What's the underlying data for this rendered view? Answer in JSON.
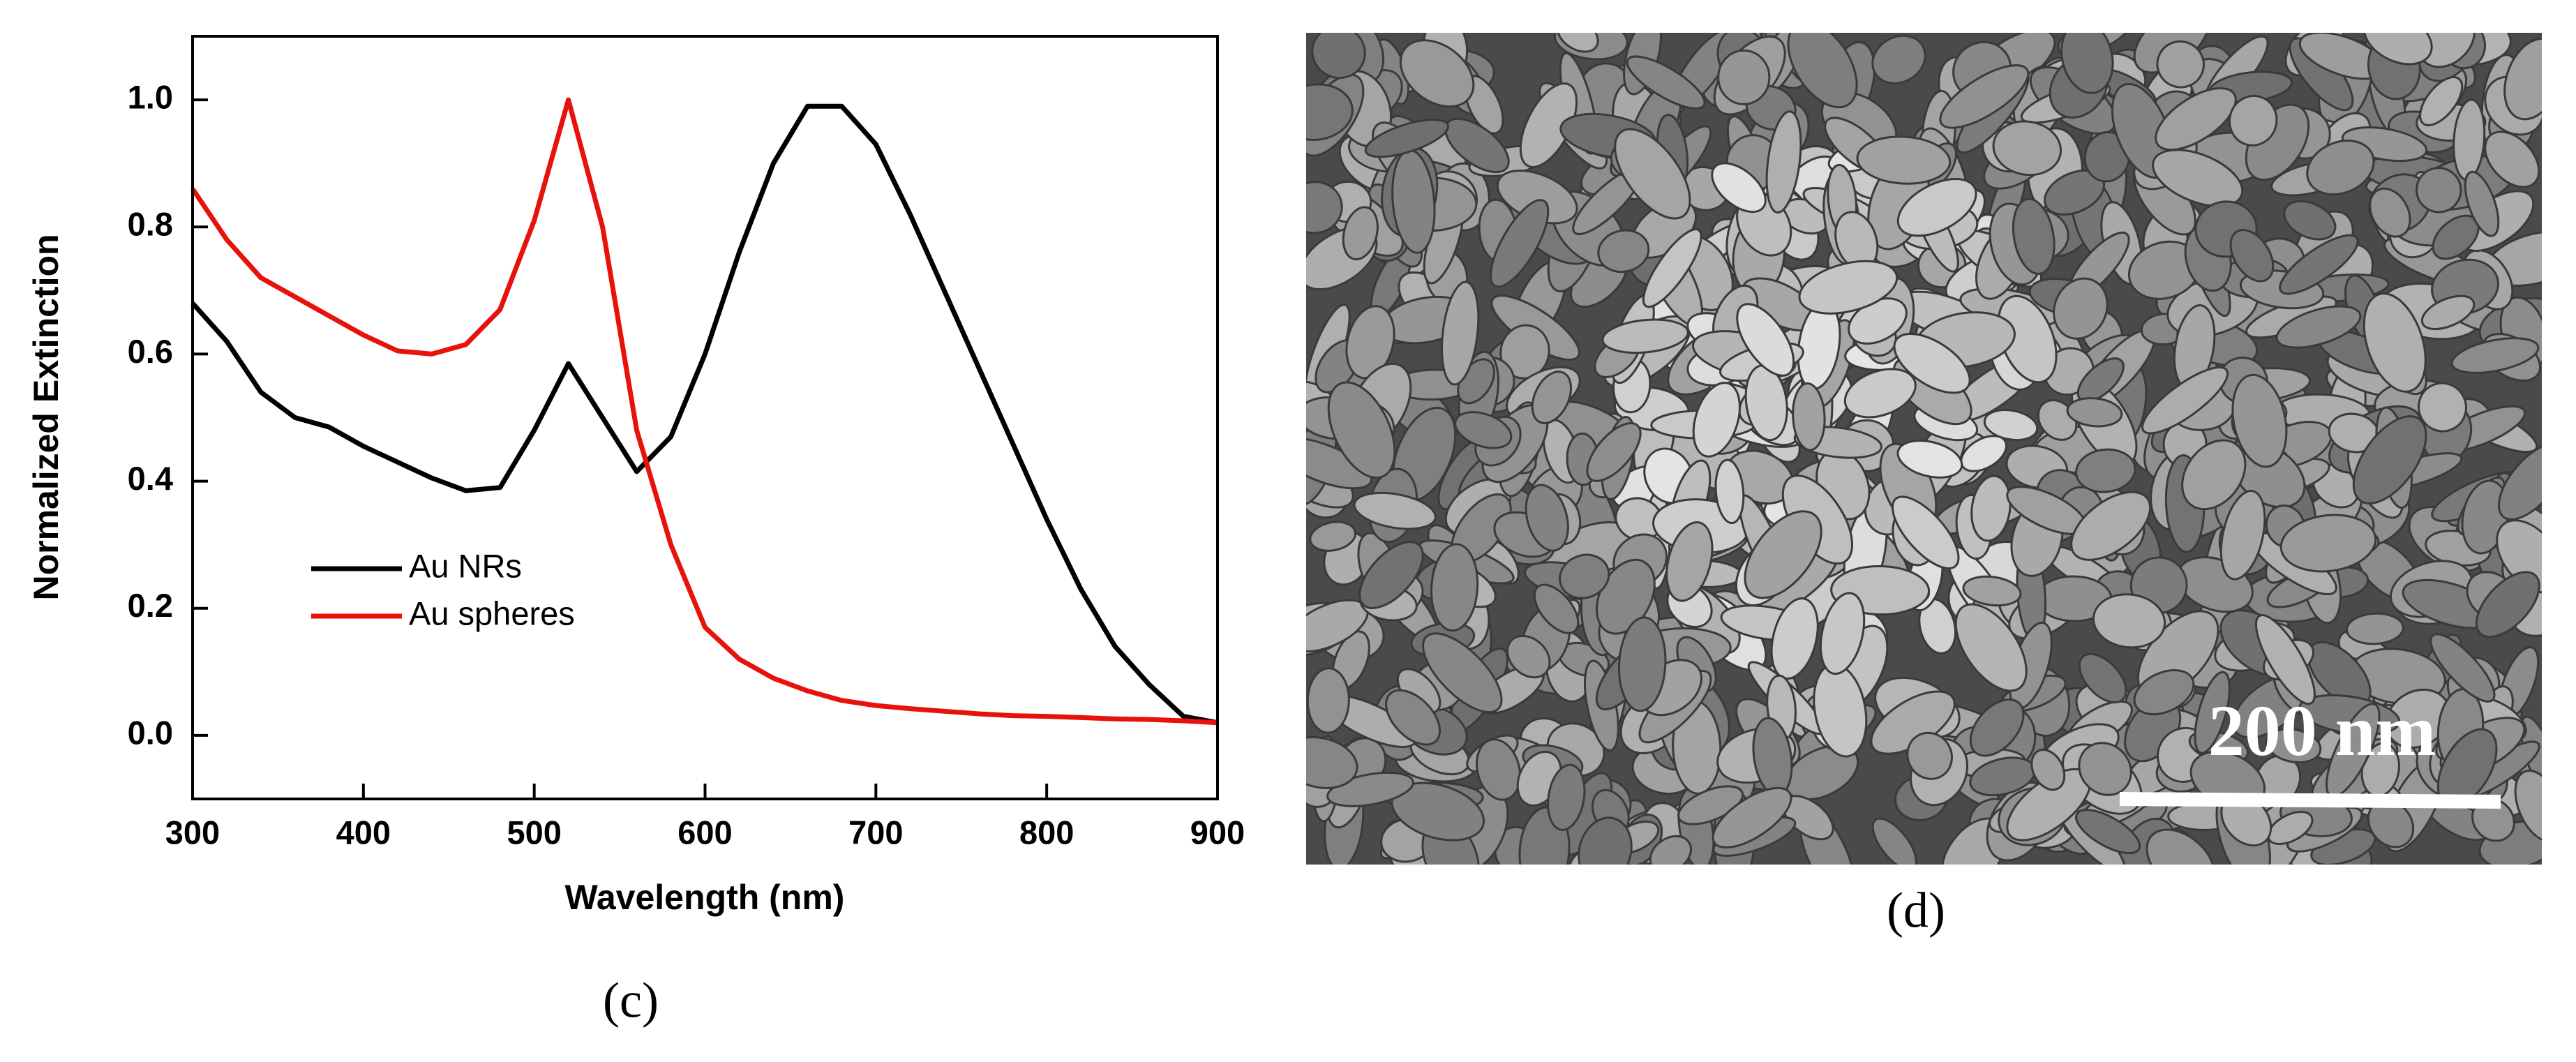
{
  "chart_data": {
    "type": "line",
    "x_label": "Wavelength (nm)",
    "y_label": "Normalized Extinction",
    "x": [
      300,
      320,
      340,
      360,
      380,
      400,
      420,
      440,
      460,
      480,
      500,
      520,
      540,
      560,
      580,
      600,
      620,
      640,
      660,
      680,
      700,
      720,
      740,
      760,
      780,
      800,
      820,
      840,
      860,
      880,
      900
    ],
    "series": [
      {
        "name": "Au NRs",
        "color": "#000000",
        "values": [
          0.68,
          0.62,
          0.54,
          0.5,
          0.485,
          0.455,
          0.43,
          0.405,
          0.385,
          0.39,
          0.48,
          0.585,
          0.5,
          0.415,
          0.47,
          0.6,
          0.76,
          0.9,
          0.99,
          0.99,
          0.93,
          0.82,
          0.7,
          0.58,
          0.46,
          0.34,
          0.23,
          0.14,
          0.08,
          0.03,
          0.02
        ]
      },
      {
        "name": "Au spheres",
        "color": "#e8120c",
        "values": [
          0.86,
          0.78,
          0.72,
          0.69,
          0.66,
          0.63,
          0.605,
          0.6,
          0.615,
          0.67,
          0.81,
          1.0,
          0.8,
          0.48,
          0.3,
          0.17,
          0.12,
          0.09,
          0.07,
          0.055,
          0.047,
          0.042,
          0.038,
          0.034,
          0.031,
          0.03,
          0.028,
          0.026,
          0.025,
          0.023,
          0.02
        ]
      }
    ],
    "xlim": [
      300,
      900
    ],
    "xticks": [
      300,
      400,
      500,
      600,
      700,
      800,
      900
    ],
    "ylim": [
      -0.1,
      1.1
    ],
    "yticks": [
      {
        "value": 0,
        "label": "0.0"
      },
      0.2,
      0.4,
      0.6,
      0.8,
      {
        "value": 1,
        "label": "1.0"
      }
    ],
    "legend": "lower left",
    "caption": "(c)"
  },
  "image_panel": {
    "scale_bar": "200 nm",
    "caption": "(d)"
  }
}
